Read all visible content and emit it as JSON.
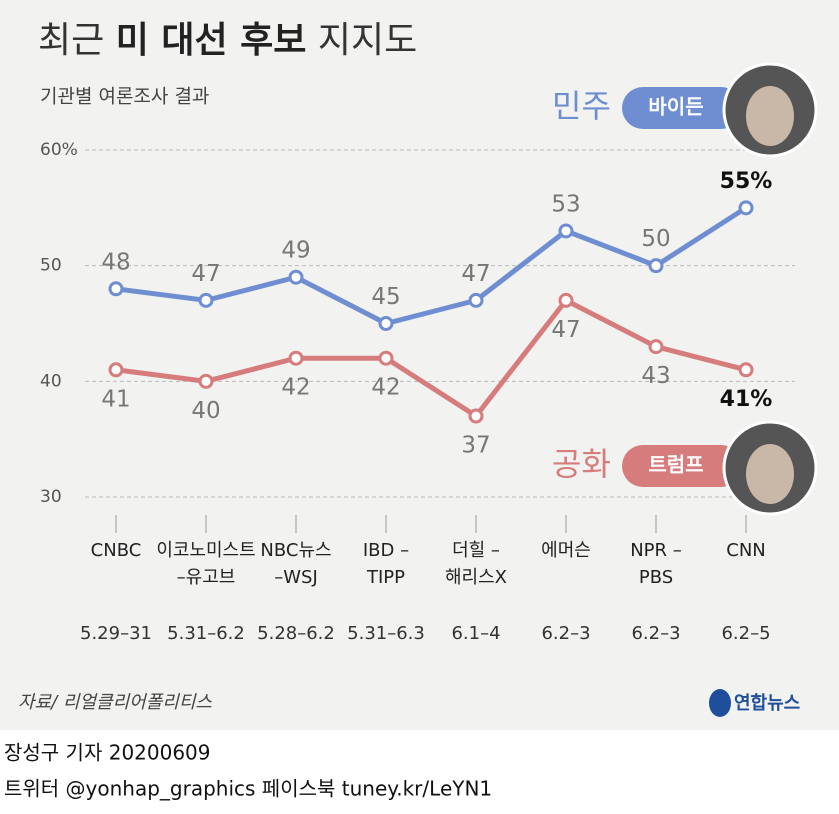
{
  "chart_data": {
    "type": "line",
    "title": [
      "최근",
      "미 대선 후보",
      "지지도"
    ],
    "subtitle": "기관별 여론조사 결과",
    "categories": [
      [
        "CNBC"
      ],
      [
        "이코노미스트",
        "–유고브"
      ],
      [
        "NBC뉴스",
        "–WSJ"
      ],
      [
        "IBD –",
        "TIPP"
      ],
      [
        "더힐 –",
        "해리스X"
      ],
      [
        "에머슨"
      ],
      [
        "NPR –",
        "PBS"
      ],
      [
        "CNN"
      ]
    ],
    "dates": [
      "5.29–31",
      "5.31–6.2",
      "5.28–6.2",
      "5.31–6.3",
      "6.1–4",
      "6.2–3",
      "6.2–3",
      "6.2–5"
    ],
    "series": [
      {
        "name": "민주",
        "candidate": "바이든",
        "color": "#6f8ed2",
        "values": [
          48,
          47,
          49,
          45,
          47,
          53,
          50,
          55
        ],
        "value_labels": [
          "48",
          "47",
          "49",
          "45",
          "47",
          "53",
          "50",
          "55%"
        ]
      },
      {
        "name": "공화",
        "candidate": "트럼프",
        "color": "#d67c7c",
        "values": [
          41,
          40,
          42,
          42,
          37,
          47,
          43,
          41
        ],
        "value_labels": [
          "41",
          "40",
          "42",
          "42",
          "37",
          "47",
          "43",
          "41%"
        ]
      }
    ],
    "ylim": [
      30,
      60
    ],
    "yticks": [
      30,
      40,
      50,
      {
        "value": 60,
        "label": "60%"
      }
    ],
    "grid": true,
    "source": "자료/ 리얼클리어폴리티스",
    "logo": "연합뉴스",
    "byline": "장성구 기자  20200609",
    "social": "트위터 @yonhap_graphics  페이스북 tuney.kr/LeYN1"
  }
}
